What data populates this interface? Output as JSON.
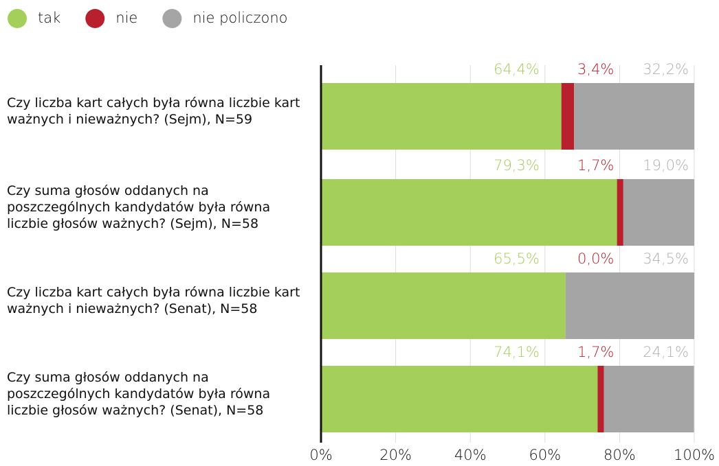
{
  "chart_data": {
    "type": "stacked_barh",
    "categories": [
      "Czy liczba kart całych była równa liczbie kart ważnych i nieważnych? (Sejm), N=59",
      "Czy suma głosów oddanych na poszczególnych kandydatów była równa liczbie głosów ważnych? (Sejm), N=58",
      "Czy liczba kart całych była równa liczbie kart ważnych i nieważnych? (Senat), N=58",
      "Czy suma głosów oddanych na poszczególnych kandydatów była równa liczbie głosów ważnych? (Senat), N=58"
    ],
    "series": [
      {
        "name": "tak",
        "color": "#a3cf5a",
        "values": [
          64.4,
          79.3,
          65.5,
          74.1
        ],
        "value_labels": [
          "64,4%",
          "79,3%",
          "65,5%",
          "74,1%"
        ]
      },
      {
        "name": "nie",
        "color": "#b8202e",
        "values": [
          3.4,
          1.7,
          0.0,
          1.7
        ],
        "value_labels": [
          "3,4%",
          "1,7%",
          "0,0%",
          "1,7%"
        ]
      },
      {
        "name": "nie policzono",
        "color": "#a5a5a5",
        "values": [
          32.2,
          19.0,
          34.5,
          24.1
        ],
        "value_labels": [
          "32,2%",
          "19,0%",
          "34,5%",
          "24,1%"
        ]
      }
    ],
    "xlim": [
      0,
      100
    ],
    "xticks": [
      {
        "value": 0,
        "label": "0%"
      },
      {
        "value": 20,
        "label": "20%"
      },
      {
        "value": 40,
        "label": "40%"
      },
      {
        "value": 60,
        "label": "60%"
      },
      {
        "value": 80,
        "label": "80%"
      },
      {
        "value": 100,
        "label": "100%"
      }
    ],
    "grid": true,
    "legend": "top-left"
  }
}
